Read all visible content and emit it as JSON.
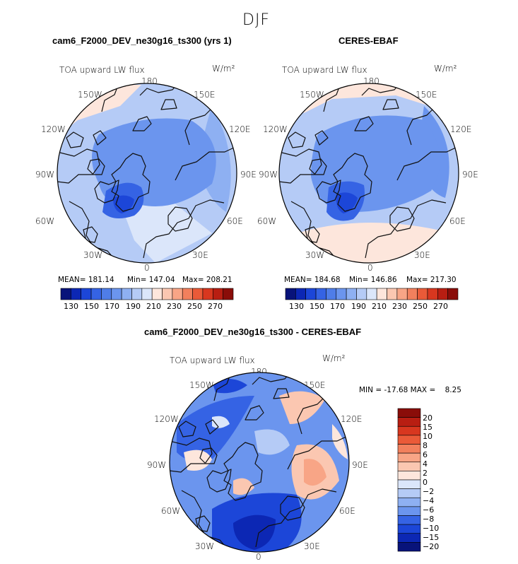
{
  "page": {
    "season": "DJF"
  },
  "panels": [
    {
      "title": "cam6_F2000_DEV_ne30g16_ts300 (yrs 1)",
      "variable": "TOA upward LW flux",
      "units": "W/m²",
      "lon_labels": [
        "180",
        "150E",
        "120E",
        "90E",
        "60E",
        "30E",
        "0",
        "30W",
        "60W",
        "90W",
        "120W",
        "150W"
      ],
      "stats": {
        "mean_label": "MEAN= 181.14",
        "min_label": "Min= 147.04",
        "max_label": "Max= 208.21"
      }
    },
    {
      "title": "CERES-EBAF",
      "variable": "TOA upward LW flux",
      "units": "W/m²",
      "lon_labels": [
        "180",
        "150E",
        "120E",
        "90E",
        "60E",
        "30E",
        "0",
        "30W",
        "60W",
        "90W",
        "120W",
        "150W"
      ],
      "stats": {
        "mean_label": "MEAN= 184.68",
        "min_label": "Min= 146.86",
        "max_label": "Max= 217.30"
      }
    },
    {
      "title": "cam6_F2000_DEV_ne30g16_ts300 - CERES-EBAF",
      "variable": "TOA upward LW flux",
      "units": "W/m²",
      "lon_labels": [
        "180",
        "150E",
        "120E",
        "90E",
        "60E",
        "30E",
        "0",
        "30W",
        "60W",
        "90W",
        "120W",
        "150W"
      ],
      "stats": {
        "minmax_label": "MIN = -17.68 MAX =    8.25"
      }
    }
  ],
  "colorbar_abs": {
    "tick_labels": [
      "130",
      "150",
      "170",
      "190",
      "210",
      "230",
      "250",
      "270"
    ],
    "colors": [
      "#08137a",
      "#0c27b4",
      "#1c46d8",
      "#3563e4",
      "#4f7de8",
      "#6b95ee",
      "#8eb0f2",
      "#b5cbf6",
      "#dbe6fa",
      "#fde6dc",
      "#fbc7b1",
      "#f8a586",
      "#f2805d",
      "#ea5a38",
      "#d8371f",
      "#b81e12",
      "#8a0d09"
    ]
  },
  "colorbar_diff": {
    "tick_labels": [
      "20",
      "15",
      "10",
      "8",
      "6",
      "4",
      "2",
      "0",
      "−2",
      "−4",
      "−6",
      "−8",
      "−10",
      "−15",
      "−20"
    ],
    "colors": [
      "#8a0d09",
      "#b81e12",
      "#d8371f",
      "#ea5a38",
      "#f2805d",
      "#f8a586",
      "#fbc7b1",
      "#fde6dc",
      "#dbe6fa",
      "#b5cbf6",
      "#8eb0f2",
      "#6b95ee",
      "#3563e4",
      "#1c46d8",
      "#0c27b4",
      "#08137a"
    ]
  }
}
